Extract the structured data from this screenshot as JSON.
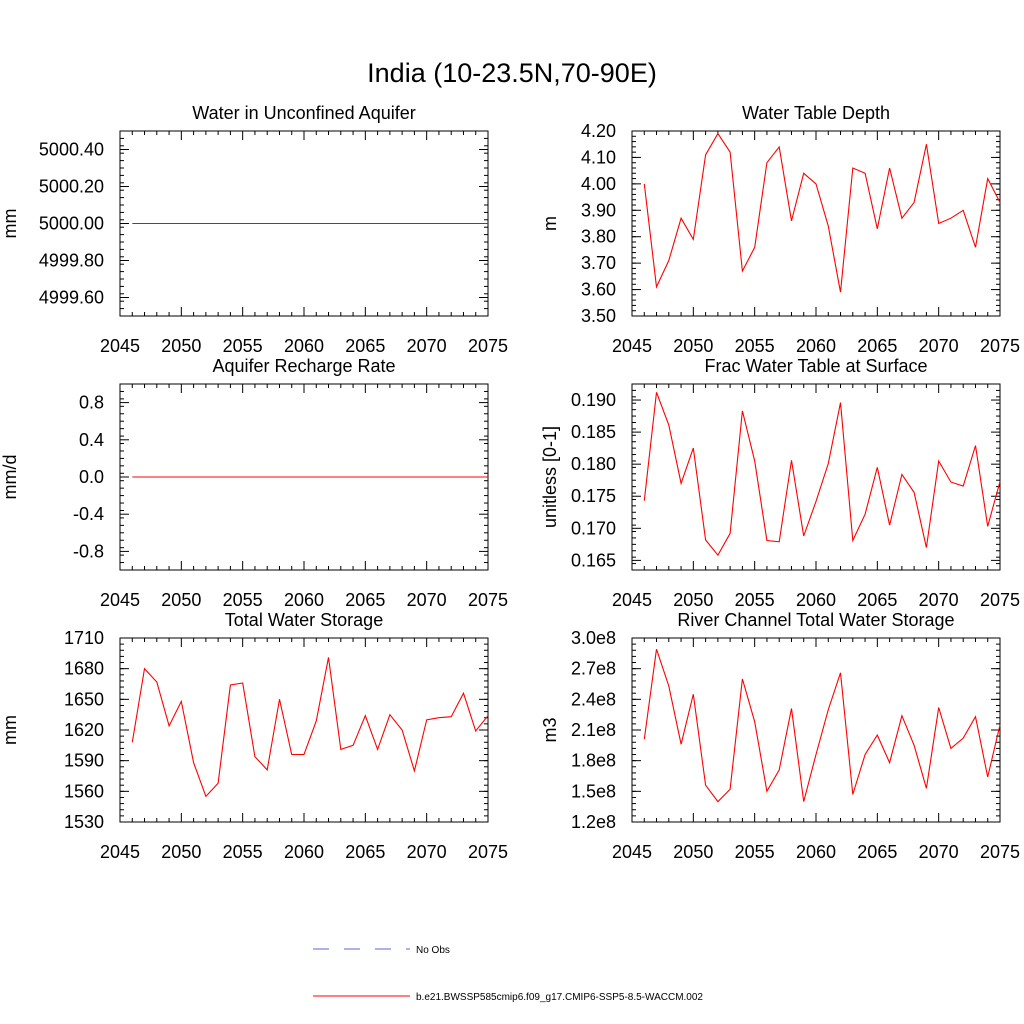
{
  "figure": {
    "title": "India (10-23.5N,70-90E)"
  },
  "legend": [
    {
      "label": "No Obs",
      "color": "#5a66c8",
      "style": "dashed"
    },
    {
      "label": "b.e21.BWSSP585cmip6.f09_g17.CMIP6-SSP5-8.5-WACCM.002",
      "color": "#ff0000",
      "style": "solid"
    }
  ],
  "chart_data": [
    {
      "id": "aquifer-water",
      "type": "line",
      "title": "Water in Unconfined Aquifer",
      "ylabel": "mm",
      "xlim": [
        2045,
        2075
      ],
      "xticks": [
        2045,
        2050,
        2055,
        2060,
        2065,
        2070,
        2075
      ],
      "ylim": [
        4999.5,
        5000.5
      ],
      "yticks": [
        4999.6,
        4999.8,
        5000.0,
        5000.2,
        5000.4
      ],
      "ytick_labels": [
        "4999.60",
        "4999.80",
        "5000.00",
        "5000.20",
        "5000.40"
      ],
      "series": [
        {
          "color": "#ff0000",
          "x": [
            2046,
            2047,
            2048,
            2049,
            2050,
            2051,
            2052,
            2053,
            2054,
            2055,
            2056,
            2057,
            2058,
            2059,
            2060,
            2061,
            2062,
            2063,
            2064,
            2065,
            2066,
            2067,
            2068,
            2069,
            2070,
            2071,
            2072,
            2073,
            2074,
            2075
          ],
          "values": [
            5000,
            5000,
            5000,
            5000,
            5000,
            5000,
            5000,
            5000,
            5000,
            5000,
            5000,
            5000,
            5000,
            5000,
            5000,
            5000,
            5000,
            5000,
            5000,
            5000,
            5000,
            5000,
            5000,
            5000,
            5000,
            5000,
            5000,
            5000,
            5000,
            5000
          ]
        }
      ]
    },
    {
      "id": "water-table-depth",
      "type": "line",
      "title": "Water Table Depth",
      "ylabel": "m",
      "xlim": [
        2045,
        2075
      ],
      "xticks": [
        2045,
        2050,
        2055,
        2060,
        2065,
        2070,
        2075
      ],
      "ylim": [
        3.5,
        4.2
      ],
      "yticks": [
        3.5,
        3.6,
        3.7,
        3.8,
        3.9,
        4.0,
        4.1,
        4.2
      ],
      "ytick_labels": [
        "3.50",
        "3.60",
        "3.70",
        "3.80",
        "3.90",
        "4.00",
        "4.10",
        "4.20"
      ],
      "series": [
        {
          "color": "#ff0000",
          "x": [
            2046,
            2047,
            2048,
            2049,
            2050,
            2051,
            2052,
            2053,
            2054,
            2055,
            2056,
            2057,
            2058,
            2059,
            2060,
            2061,
            2062,
            2063,
            2064,
            2065,
            2066,
            2067,
            2068,
            2069,
            2070,
            2071,
            2072,
            2073,
            2074,
            2075
          ],
          "values": [
            4.0,
            3.61,
            3.71,
            3.87,
            3.79,
            4.11,
            4.19,
            4.12,
            3.67,
            3.76,
            4.08,
            4.14,
            3.86,
            4.04,
            4.0,
            3.84,
            3.59,
            4.06,
            4.04,
            3.83,
            4.06,
            3.87,
            3.93,
            4.15,
            3.85,
            3.87,
            3.9,
            3.76,
            4.02,
            3.93
          ]
        }
      ]
    },
    {
      "id": "recharge-rate",
      "type": "line",
      "title": "Aquifer Recharge Rate",
      "ylabel": "mm/d",
      "xlim": [
        2045,
        2075
      ],
      "xticks": [
        2045,
        2050,
        2055,
        2060,
        2065,
        2070,
        2075
      ],
      "ylim": [
        -1.0,
        1.0
      ],
      "yticks": [
        -0.8,
        -0.4,
        0.0,
        0.4,
        0.8
      ],
      "ytick_labels": [
        "-0.8",
        "-0.4",
        "0.0",
        "0.4",
        "0.8"
      ],
      "series": [
        {
          "color": "#ff0000",
          "x": [
            2046,
            2047,
            2048,
            2049,
            2050,
            2051,
            2052,
            2053,
            2054,
            2055,
            2056,
            2057,
            2058,
            2059,
            2060,
            2061,
            2062,
            2063,
            2064,
            2065,
            2066,
            2067,
            2068,
            2069,
            2070,
            2071,
            2072,
            2073,
            2074,
            2075
          ],
          "values": [
            0,
            0,
            0,
            0,
            0,
            0,
            0,
            0,
            0,
            0,
            0,
            0,
            0,
            0,
            0,
            0,
            0,
            0,
            0,
            0,
            0,
            0,
            0,
            0,
            0,
            0,
            0,
            0,
            0,
            0
          ]
        }
      ]
    },
    {
      "id": "frac-water-table",
      "type": "line",
      "title": "Frac Water Table at Surface",
      "ylabel": "unitless [0-1]",
      "xlim": [
        2045,
        2075
      ],
      "xticks": [
        2045,
        2050,
        2055,
        2060,
        2065,
        2070,
        2075
      ],
      "ylim": [
        0.1635,
        0.1925
      ],
      "yticks": [
        0.165,
        0.17,
        0.175,
        0.18,
        0.185,
        0.19
      ],
      "ytick_labels": [
        "0.165",
        "0.170",
        "0.175",
        "0.180",
        "0.185",
        "0.190"
      ],
      "series": [
        {
          "color": "#ff0000",
          "x": [
            2046,
            2047,
            2048,
            2049,
            2050,
            2051,
            2052,
            2053,
            2054,
            2055,
            2056,
            2057,
            2058,
            2059,
            2060,
            2061,
            2062,
            2063,
            2064,
            2065,
            2066,
            2067,
            2068,
            2069,
            2070,
            2071,
            2072,
            2073,
            2074,
            2075
          ],
          "values": [
            0.1743,
            0.1912,
            0.1861,
            0.177,
            0.1825,
            0.1682,
            0.1658,
            0.1692,
            0.1883,
            0.1805,
            0.1681,
            0.1679,
            0.1806,
            0.1688,
            0.1742,
            0.1801,
            0.1896,
            0.1681,
            0.1722,
            0.1795,
            0.1705,
            0.1784,
            0.1756,
            0.167,
            0.1805,
            0.1772,
            0.1766,
            0.1829,
            0.1703,
            0.1773
          ]
        }
      ]
    },
    {
      "id": "total-water-storage",
      "type": "line",
      "title": "Total Water Storage",
      "ylabel": "mm",
      "xlim": [
        2045,
        2075
      ],
      "xticks": [
        2045,
        2050,
        2055,
        2060,
        2065,
        2070,
        2075
      ],
      "ylim": [
        1530,
        1710
      ],
      "yticks": [
        1530,
        1560,
        1590,
        1620,
        1650,
        1680,
        1710
      ],
      "ytick_labels": [
        "1530",
        "1560",
        "1590",
        "1620",
        "1650",
        "1680",
        "1710"
      ],
      "series": [
        {
          "color": "#ff0000",
          "x": [
            2046,
            2047,
            2048,
            2049,
            2050,
            2051,
            2052,
            2053,
            2054,
            2055,
            2056,
            2057,
            2058,
            2059,
            2060,
            2061,
            2062,
            2063,
            2064,
            2065,
            2066,
            2067,
            2068,
            2069,
            2070,
            2071,
            2072,
            2073,
            2074,
            2075
          ],
          "values": [
            1608,
            1680,
            1667,
            1624,
            1648,
            1588,
            1555,
            1568,
            1664,
            1666,
            1594,
            1581,
            1650,
            1596,
            1596,
            1629,
            1691,
            1601,
            1605,
            1634,
            1601,
            1635,
            1620,
            1580,
            1630,
            1632,
            1633,
            1656,
            1619,
            1634
          ]
        }
      ]
    },
    {
      "id": "river-channel-storage",
      "type": "line",
      "title": "River Channel Total Water Storage",
      "ylabel": "m3",
      "xlim": [
        2045,
        2075
      ],
      "xticks": [
        2045,
        2050,
        2055,
        2060,
        2065,
        2070,
        2075
      ],
      "ylim": [
        120000000.0,
        300000000.0
      ],
      "yticks": [
        120000000.0,
        150000000.0,
        180000000.0,
        210000000.0,
        240000000.0,
        270000000.0,
        300000000.0
      ],
      "ytick_labels": [
        "1.2e8",
        "1.5e8",
        "1.8e8",
        "2.1e8",
        "2.4e8",
        "2.7e8",
        "3.0e8"
      ],
      "series": [
        {
          "color": "#ff0000",
          "x": [
            2046,
            2047,
            2048,
            2049,
            2050,
            2051,
            2052,
            2053,
            2054,
            2055,
            2056,
            2057,
            2058,
            2059,
            2060,
            2061,
            2062,
            2063,
            2064,
            2065,
            2066,
            2067,
            2068,
            2069,
            2070,
            2071,
            2072,
            2073,
            2074,
            2075
          ],
          "values": [
            201000000.0,
            289000000.0,
            253000000.0,
            196000000.0,
            245000000.0,
            156000000.0,
            140000000.0,
            152000000.0,
            260000000.0,
            218000000.0,
            150000000.0,
            171000000.0,
            231000000.0,
            140000000.0,
            186000000.0,
            230000000.0,
            266000000.0,
            147000000.0,
            186000000.0,
            205000000.0,
            178000000.0,
            224000000.0,
            195000000.0,
            153000000.0,
            232000000.0,
            192000000.0,
            202000000.0,
            223000000.0,
            164000000.0,
            215000000.0
          ]
        }
      ]
    }
  ]
}
